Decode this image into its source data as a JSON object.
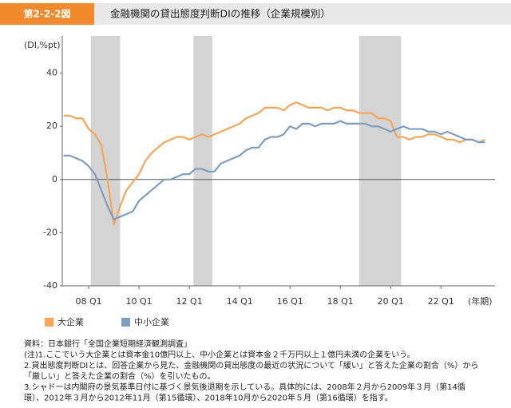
{
  "header": {
    "label": "第2-2-2図",
    "title": "金融機関の貸出態度判断DIの推移（企業規模別）"
  },
  "chart_data": {
    "type": "line",
    "y_label": "(DI,%pt)",
    "x_label": "(年期)",
    "x": [
      2007,
      2007.25,
      2007.5,
      2007.75,
      2008,
      2008.25,
      2008.5,
      2008.75,
      2009,
      2009.25,
      2009.5,
      2009.75,
      2010,
      2010.25,
      2010.5,
      2010.75,
      2011,
      2011.25,
      2011.5,
      2011.75,
      2012,
      2012.25,
      2012.5,
      2012.75,
      2013,
      2013.25,
      2013.5,
      2013.75,
      2014,
      2014.25,
      2014.5,
      2014.75,
      2015,
      2015.25,
      2015.5,
      2015.75,
      2016,
      2016.25,
      2016.5,
      2016.75,
      2017,
      2017.25,
      2017.5,
      2017.75,
      2018,
      2018.25,
      2018.5,
      2018.75,
      2019,
      2019.25,
      2019.5,
      2019.75,
      2020,
      2020.25,
      2020.5,
      2020.75,
      2021,
      2021.25,
      2021.5,
      2021.75,
      2022,
      2022.25,
      2022.5,
      2022.75,
      2023,
      2023.25,
      2023.5,
      2023.75
    ],
    "series": [
      {
        "name": "大企業",
        "color": "#f5a65b",
        "values": [
          24,
          24,
          23,
          23,
          19,
          17,
          13,
          0,
          -17,
          -10,
          -4,
          -1,
          2,
          7,
          10,
          12,
          14,
          15,
          16,
          16,
          15,
          16,
          17,
          16,
          17,
          18,
          19,
          20,
          21,
          23,
          24,
          25,
          27,
          27,
          27,
          26,
          28,
          29,
          28,
          27,
          27,
          27,
          26,
          27,
          27,
          26,
          26,
          25,
          25,
          25,
          23,
          23,
          22,
          16,
          16,
          15,
          16,
          16,
          17,
          17,
          16,
          15,
          15,
          14,
          15,
          15,
          14,
          15
        ]
      },
      {
        "name": "中小企業",
        "color": "#7f9dbd",
        "values": [
          9,
          9,
          8,
          7,
          5,
          2,
          -4,
          -10,
          -15,
          -14,
          -13,
          -12,
          -8,
          -6,
          -4,
          -2,
          0,
          0,
          1,
          2,
          2,
          4,
          4,
          3,
          3,
          6,
          7,
          8,
          9,
          11,
          12,
          12,
          15,
          16,
          16,
          17,
          20,
          19,
          21,
          21,
          20,
          21,
          21,
          21,
          22,
          21,
          21,
          21,
          21,
          20,
          20,
          19,
          18,
          19,
          20,
          19,
          19,
          19,
          18,
          18,
          17,
          18,
          17,
          16,
          15,
          15,
          14,
          14
        ]
      }
    ],
    "xlim": [
      2006.95,
      2024.15
    ],
    "xticks": [
      {
        "value": 2008,
        "label": "08 Q1"
      },
      {
        "value": 2010,
        "label": "10 Q1"
      },
      {
        "value": 2012,
        "label": "12 Q1"
      },
      {
        "value": 2014,
        "label": "14 Q1"
      },
      {
        "value": 2016,
        "label": "16 Q1"
      },
      {
        "value": 2018,
        "label": "18 Q1"
      },
      {
        "value": 2020,
        "label": "20 Q1"
      },
      {
        "value": 2022,
        "label": "22 Q1"
      }
    ],
    "ylim": [
      -40,
      54
    ],
    "yticks": [
      40,
      20,
      0,
      -20,
      -40
    ],
    "shaded": [
      [
        2008.083,
        2009.25
      ],
      [
        2012.167,
        2012.917
      ],
      [
        2018.75,
        2020.417
      ]
    ],
    "shade_color": "#d4d4d4"
  },
  "notes": [
    "資料：日本銀行「全国企業短期経済観測調査」",
    "(注)1.ここでいう大企業とは資本金10億円以上、中小企業とは資本金２千万円以上１億円未満の企業をいう。",
    "2.貸出態度判断DIとは、回答企業から見た、金融機関の貸出態度の最近の状況について「緩い」と答えた企業の割合（%）から",
    "「厳しい」と答えた企業の割合（%）を引いたもの。",
    "3.シャドーは内閣府の景気基準日付に基づく景気後退期を示している。具体的には、2008年２月から2009年３月（第14循",
    "環）、2012年３月から2012年11月（第15循環）、2018年10月から2020年５月（第16循環）を指す。"
  ]
}
